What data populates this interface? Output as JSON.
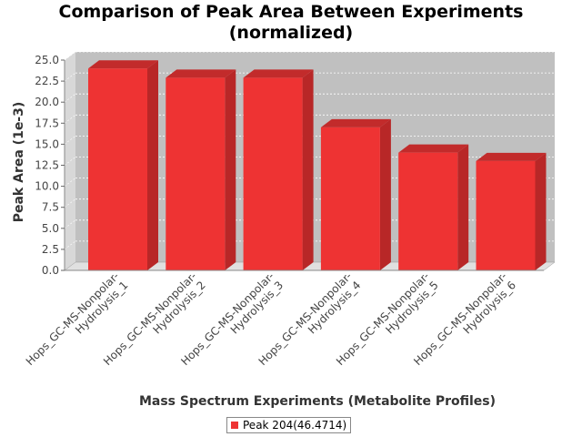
{
  "chart_data": {
    "type": "bar",
    "title_lines": [
      "Comparison of Peak Area Between Experiments",
      "(normalized)"
    ],
    "xlabel": "Mass Spectrum Experiments (Metabolite Profiles)",
    "ylabel": "Peak Area (1e-3)",
    "ylim": [
      0,
      25
    ],
    "yticks": [
      "0.0",
      "2.5",
      "5.0",
      "7.5",
      "10.0",
      "12.5",
      "15.0",
      "17.5",
      "20.0",
      "22.5",
      "25.0"
    ],
    "categories": [
      [
        "Hops_GC-MS-Nonpolar-",
        "Hydrolysis_1"
      ],
      [
        "Hops_GC-MS-Nonpolar-",
        "Hydrolysis_2"
      ],
      [
        "Hops_GC-MS-Nonpolar-",
        "Hydrolysis_3"
      ],
      [
        "Hops_GC-MS-Nonpolar-",
        "Hydrolysis_4"
      ],
      [
        "Hops_GC-MS-Nonpolar-",
        "Hydrolysis_5"
      ],
      [
        "Hops_GC-MS-Nonpolar-",
        "Hydrolysis_6"
      ]
    ],
    "series": [
      {
        "name": "Peak 204(46.4714)",
        "values": [
          24.0,
          22.9,
          22.9,
          17.0,
          14.0,
          13.0
        ]
      }
    ],
    "grid": true,
    "legend_position": "bottom-center",
    "colors": {
      "bar": "#ee3333",
      "bar_side": "#b82727",
      "bar_top": "#c22b2b",
      "plot_bg": "#c0c0c0"
    }
  }
}
